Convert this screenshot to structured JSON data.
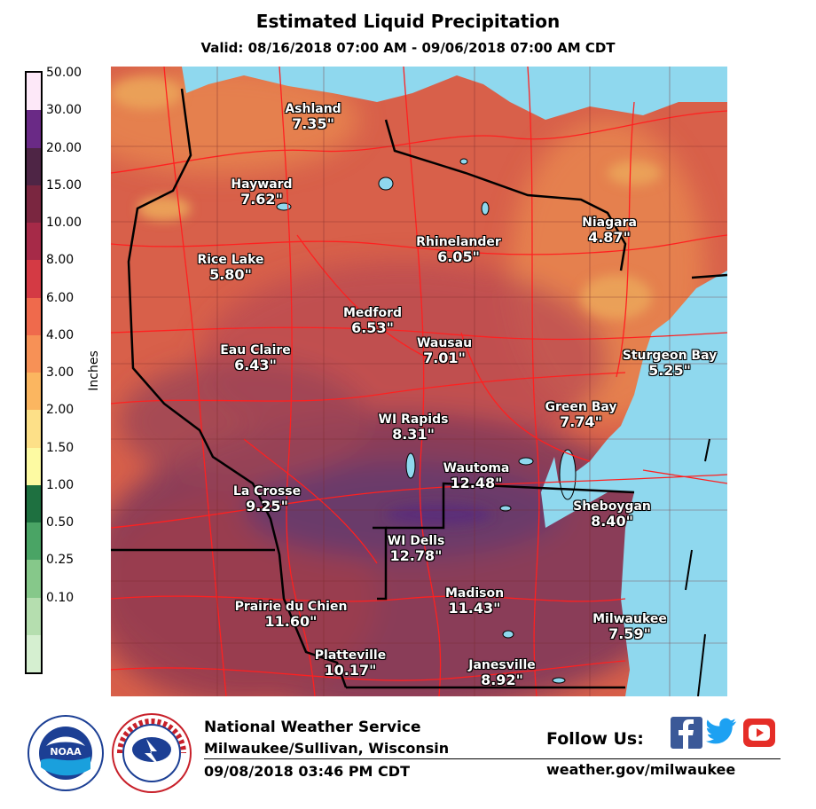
{
  "title": "Estimated Liquid Precipitation",
  "valid": "Valid: 08/16/2018 07:00 AM - 09/06/2018 07:00 AM CDT",
  "legend": {
    "units": "Inches",
    "labels": [
      "50.00",
      "30.00",
      "20.00",
      "15.00",
      "10.00",
      "8.00",
      "6.00",
      "4.00",
      "3.00",
      "2.00",
      "1.50",
      "1.00",
      "0.50",
      "0.25",
      "0.10"
    ],
    "colors": [
      "#fde8f8",
      "#6a2a86",
      "#4e2545",
      "#7a2640",
      "#a62a48",
      "#d43a44",
      "#ef6a4c",
      "#f79156",
      "#fbb660",
      "#fde088",
      "#fdfaa2",
      "#1e7040",
      "#4aa465",
      "#86c88a",
      "#b5deaf",
      "#d5efd0"
    ]
  },
  "map_colors": {
    "lake": "#8fd8ee",
    "base": "#d8604a",
    "wet": "#8a3e58",
    "wettest": "#6b3a6a",
    "dry": "#e88850",
    "roads": "#ff2020",
    "borders": "#000000"
  },
  "cities": [
    {
      "id": "ashland",
      "name": "Ashland",
      "value": "7.35\""
    },
    {
      "id": "hayward",
      "name": "Hayward",
      "value": "7.62\""
    },
    {
      "id": "rice-lake",
      "name": "Rice Lake",
      "value": "5.80\""
    },
    {
      "id": "rhinelander",
      "name": "Rhinelander",
      "value": "6.05\""
    },
    {
      "id": "niagara",
      "name": "Niagara",
      "value": "4.87\""
    },
    {
      "id": "medford",
      "name": "Medford",
      "value": "6.53\""
    },
    {
      "id": "eau-claire",
      "name": "Eau Claire",
      "value": "6.43\""
    },
    {
      "id": "wausau",
      "name": "Wausau",
      "value": "7.01\""
    },
    {
      "id": "sturgeon-bay",
      "name": "Sturgeon Bay",
      "value": "5.25\""
    },
    {
      "id": "wi-rapids",
      "name": "WI Rapids",
      "value": "8.31\""
    },
    {
      "id": "green-bay",
      "name": "Green Bay",
      "value": "7.74\""
    },
    {
      "id": "la-crosse",
      "name": "La Crosse",
      "value": "9.25\""
    },
    {
      "id": "wautoma",
      "name": "Wautoma",
      "value": "12.48\""
    },
    {
      "id": "sheboygan",
      "name": "Sheboygan",
      "value": "8.40\""
    },
    {
      "id": "wi-dells",
      "name": "WI Dells",
      "value": "12.78\""
    },
    {
      "id": "prairie-du-chien",
      "name": "Prairie du Chien",
      "value": "11.60\""
    },
    {
      "id": "madison",
      "name": "Madison",
      "value": "11.43\""
    },
    {
      "id": "milwaukee",
      "name": "Milwaukee",
      "value": "7.59\""
    },
    {
      "id": "platteville",
      "name": "Platteville",
      "value": "10.17\""
    },
    {
      "id": "janesville",
      "name": "Janesville",
      "value": "8.92\""
    }
  ],
  "footer": {
    "office_name": "National Weather Service",
    "office_location": "Milwaukee/Sullivan, Wisconsin",
    "timestamp": "09/08/2018 03:46 PM CDT",
    "follow": "Follow Us:",
    "url": "weather.gov/milwaukee",
    "noaa_logo_text": "NOAA",
    "nws_logo_text": "NATIONAL WEATHER SERVICE"
  }
}
